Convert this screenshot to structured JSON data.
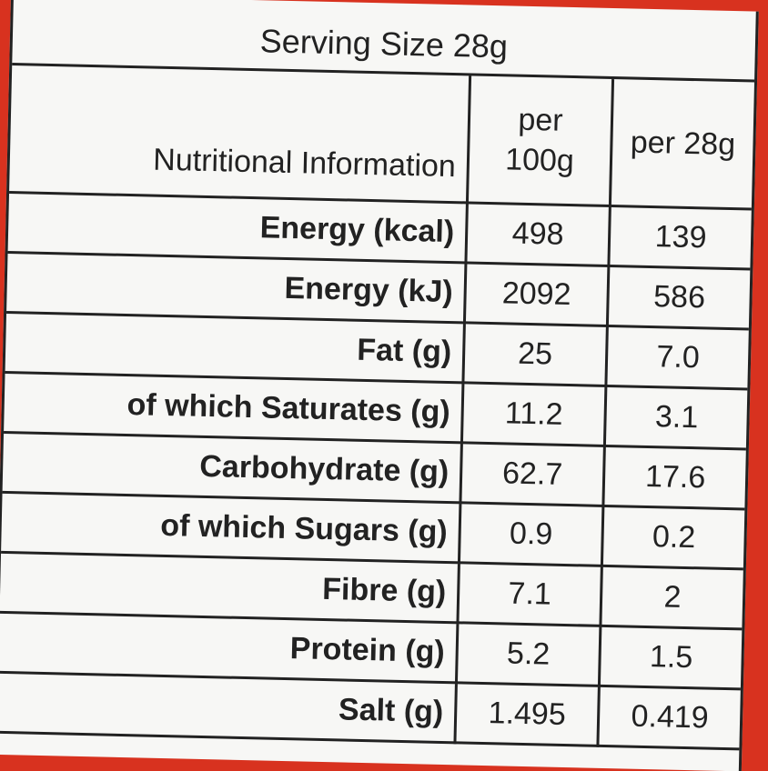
{
  "title": "Serving Size 28g",
  "table": {
    "header": [
      "Nutritional Information",
      "per 100g",
      "per 28g"
    ],
    "rows": [
      [
        "Energy (kcal)",
        "498",
        "139"
      ],
      [
        "Energy (kJ)",
        "2092",
        "586"
      ],
      [
        "Fat (g)",
        "25",
        "7.0"
      ],
      [
        "of which Saturates (g)",
        "11.2",
        "3.1"
      ],
      [
        "Carbohydrate (g)",
        "62.7",
        "17.6"
      ],
      [
        "of which Sugars (g)",
        "0.9",
        "0.2"
      ],
      [
        "Fibre (g)",
        "7.1",
        "2"
      ],
      [
        "Protein (g)",
        "5.2",
        "1.5"
      ],
      [
        "Salt (g)",
        "1.495",
        "0.419"
      ]
    ]
  }
}
